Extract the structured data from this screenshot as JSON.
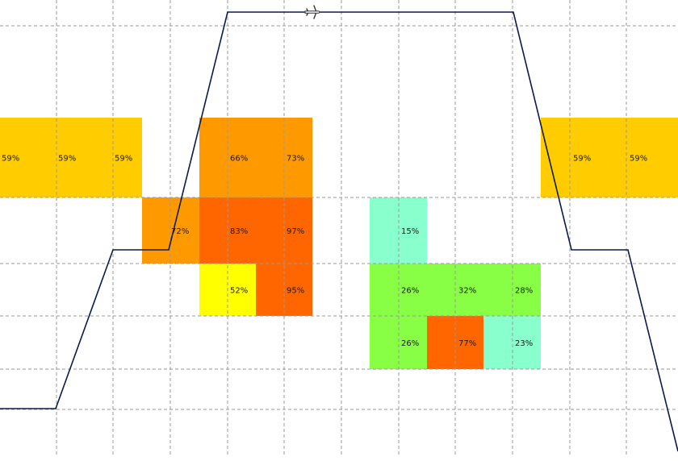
{
  "chart_data": {
    "type": "heatmap",
    "title": "",
    "xlabel": "",
    "ylabel": "",
    "grid": true,
    "colors": {
      "grid": "#9a9a9a",
      "profile_line": "#0b1a4a",
      "aircraft_icon": "#333333",
      "cell_yellow": "#ffff00",
      "cell_amber": "#ffcc00",
      "cell_orange": "#ff9900",
      "cell_dark_orange": "#ff6600",
      "cell_green": "#88ff44",
      "cell_mint": "#88ffcc"
    },
    "icon": "aircraft-icon",
    "cells": [
      {
        "row": 0,
        "label": "59%",
        "value": 59,
        "color": "#ffcc00"
      },
      {
        "row": 0,
        "label": "59%",
        "value": 59,
        "color": "#ffcc00"
      },
      {
        "row": 0,
        "label": "59%",
        "value": 59,
        "color": "#ffcc00"
      },
      {
        "row": 0,
        "label": "66%",
        "value": 66,
        "color": "#ff9900"
      },
      {
        "row": 0,
        "label": "73%",
        "value": 73,
        "color": "#ff9900"
      },
      {
        "row": 0,
        "label": "59%",
        "value": 59,
        "color": "#ffcc00"
      },
      {
        "row": 0,
        "label": "59%",
        "value": 59,
        "color": "#ffcc00"
      },
      {
        "row": 1,
        "label": "72%",
        "value": 72,
        "color": "#ff9900"
      },
      {
        "row": 1,
        "label": "83%",
        "value": 83,
        "color": "#ff6600"
      },
      {
        "row": 1,
        "label": "97%",
        "value": 97,
        "color": "#ff6600"
      },
      {
        "row": 1,
        "label": "15%",
        "value": 15,
        "color": "#88ffcc"
      },
      {
        "row": 2,
        "label": "52%",
        "value": 52,
        "color": "#ffff00"
      },
      {
        "row": 2,
        "label": "95%",
        "value": 95,
        "color": "#ff6600"
      },
      {
        "row": 2,
        "label": "26%",
        "value": 26,
        "color": "#88ff44"
      },
      {
        "row": 2,
        "label": "32%",
        "value": 32,
        "color": "#88ff44"
      },
      {
        "row": 2,
        "label": "28%",
        "value": 28,
        "color": "#88ff44"
      },
      {
        "row": 3,
        "label": "26%",
        "value": 26,
        "color": "#88ff44"
      },
      {
        "row": 3,
        "label": "77%",
        "value": 77,
        "color": "#ff6600"
      },
      {
        "row": 3,
        "label": "23%",
        "value": 23,
        "color": "#88ffcc"
      }
    ]
  }
}
